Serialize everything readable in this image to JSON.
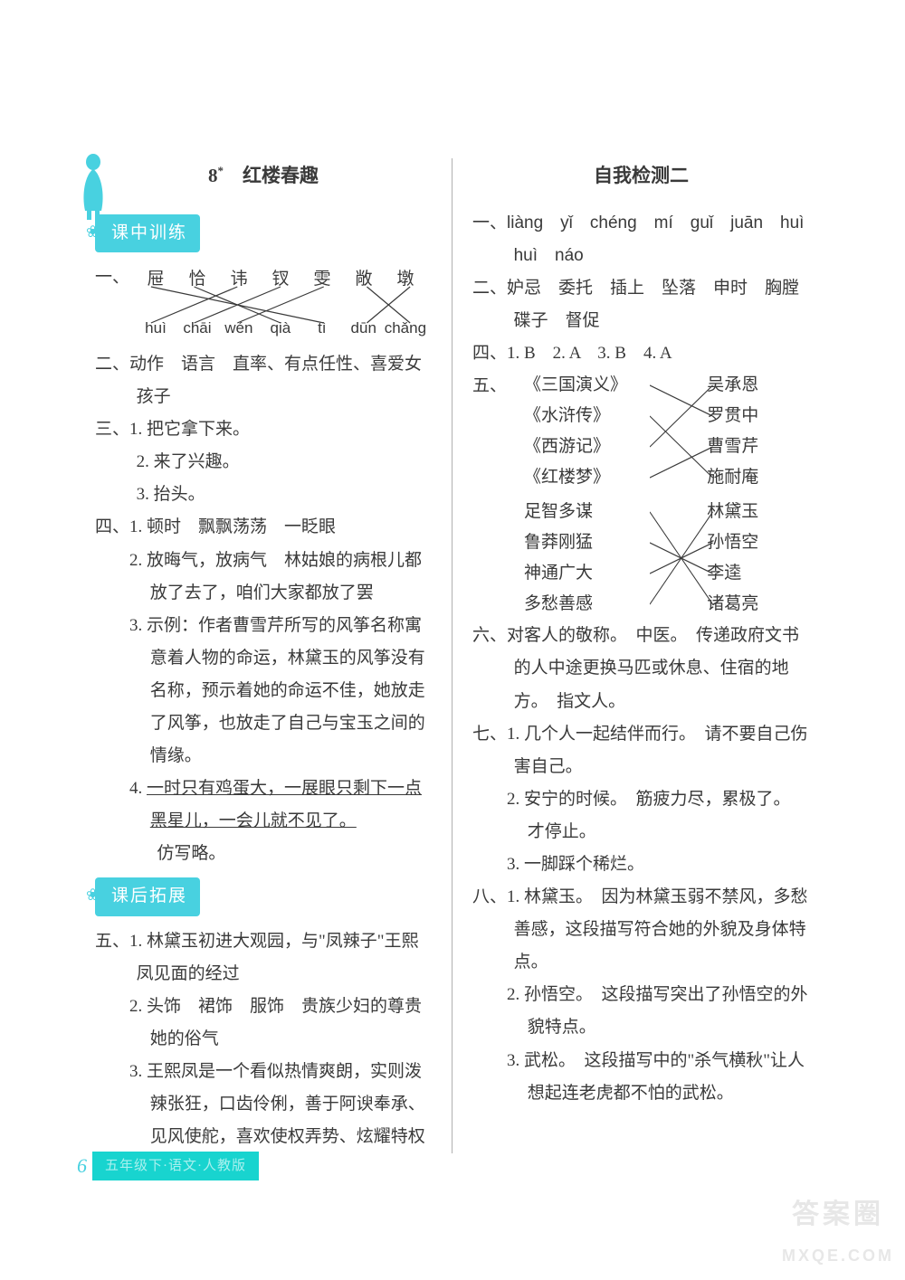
{
  "left": {
    "title_num": "8",
    "title_sup": "*",
    "title": "红楼春趣",
    "badge1": "课中训练",
    "badge2": "课后拓展",
    "q1_label": "一、",
    "q1_chars": [
      "屉",
      "恰",
      "讳",
      "钗",
      "雯",
      "敞",
      "墩"
    ],
    "q1_pinyin": [
      "huì",
      "chāi",
      "wén",
      "qià",
      "tì",
      "dūn",
      "chǎng"
    ],
    "q1_match": {
      "pairs": [
        [
          0,
          4
        ],
        [
          1,
          3
        ],
        [
          2,
          0
        ],
        [
          3,
          1
        ],
        [
          4,
          2
        ],
        [
          5,
          6
        ],
        [
          6,
          5
        ]
      ],
      "line_color": "#3a3a3a",
      "line_width": 1.2
    },
    "q2": "二、动作　语言　直率、有点任性、喜爱女孩子",
    "q3_label": "三、",
    "q3_1": "1. 把它拿下来。",
    "q3_2": "2. 来了兴趣。",
    "q3_3": "3. 抬头。",
    "q4_label": "四、",
    "q4_1": "1. 顿时　飘飘荡荡　一眨眼",
    "q4_2": "2. 放晦气，放病气　林姑娘的病根儿都放了去了，咱们大家都放了罢",
    "q4_3": "3. 示例：作者曹雪芹所写的风筝名称寓意着人物的命运，林黛玉的风筝没有名称，预示着她的命运不佳，她放走了风筝，也放走了自己与宝玉之间的情缘。",
    "q4_4a": "4. ",
    "q4_4b": "一时只有鸡蛋大，一展眼只剩下一点黑星儿，一会儿就不见了。",
    "q4_4c": "仿写略。",
    "q5_label": "五、",
    "q5_1": "1. 林黛玉初进大观园，与\"凤辣子\"王熙凤见面的经过",
    "q5_2": "2. 头饰　裙饰　服饰　贵族少妇的尊贵　她的俗气",
    "q5_3": "3. 王熙凤是一个看似热情爽朗，实则泼辣张狂，口齿伶俐，善于阿谀奉承、见风使舵，喜欢使权弄势、炫耀特权和地位的人。"
  },
  "right": {
    "title": "自我检测二",
    "q1_label": "一、",
    "q1_text": "liàng　yǐ　chéng　mí　guǐ　juān　huì　huì　náo",
    "q2": "二、妒忌　委托　插上　坠落　申时　胸膛　碟子　督促",
    "q4": "四、1. B　2. A　3. B　4. A",
    "q5_label": "五、",
    "q5_match1": {
      "left": [
        "《三国演义》",
        "《水浒传》",
        "《西游记》",
        "《红楼梦》"
      ],
      "right": [
        "吴承恩",
        "罗贯中",
        "曹雪芹",
        "施耐庵"
      ],
      "pairs": [
        [
          0,
          1
        ],
        [
          1,
          3
        ],
        [
          2,
          0
        ],
        [
          3,
          2
        ]
      ],
      "line_color": "#3a3a3a"
    },
    "q5_match2": {
      "left": [
        "足智多谋",
        "鲁莽刚猛",
        "神通广大",
        "多愁善感"
      ],
      "right": [
        "林黛玉",
        "孙悟空",
        "李逵",
        "诸葛亮"
      ],
      "pairs": [
        [
          0,
          3
        ],
        [
          1,
          2
        ],
        [
          2,
          1
        ],
        [
          3,
          0
        ]
      ],
      "line_color": "#3a3a3a"
    },
    "q6": "六、对客人的敬称。　中医。　传递政府文书的人中途更换马匹或休息、住宿的地方。　指文人。",
    "q7_label": "七、",
    "q7_1": "1. 几个人一起结伴而行。　请不要自己伤害自己。",
    "q7_2": "2. 安宁的时候。　筋疲力尽，累极了。　才停止。",
    "q7_3": "3. 一脚踩个稀烂。",
    "q8_label": "八、",
    "q8_1": "1. 林黛玉。　因为林黛玉弱不禁风，多愁善感，这段描写符合她的外貌及身体特点。",
    "q8_2": "2. 孙悟空。　这段描写突出了孙悟空的外貌特点。",
    "q8_3": "3. 武松。　这段描写中的\"杀气横秋\"让人想起连老虎都不怕的武松。"
  },
  "footer": {
    "page": "6",
    "bar": "五年级下·语文·人教版"
  },
  "watermark": {
    "line1": "答案圈",
    "line2": "MXQE.COM"
  },
  "colors": {
    "text": "#3a3a3a",
    "accent": "#48d1e0",
    "footer_bar": "#18d4cf",
    "background": "#ffffff"
  }
}
